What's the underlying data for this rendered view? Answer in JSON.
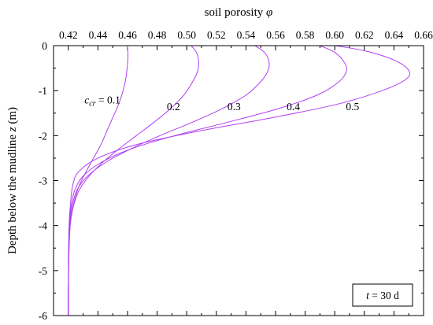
{
  "chart_data": {
    "type": "line",
    "xlabel": "soil porosity",
    "xlabel_symbol": "φ",
    "ylabel": "Depth below the mudline",
    "ylabel_symbol": "z",
    "ylabel_unit": "(m)",
    "xlim": [
      0.41,
      0.66
    ],
    "ylim": [
      -6,
      0
    ],
    "x_axis_position": "top",
    "x_ticks": [
      0.42,
      0.44,
      0.46,
      0.48,
      0.5,
      0.52,
      0.54,
      0.56,
      0.58,
      0.6,
      0.62,
      0.64,
      0.66
    ],
    "x_tick_labels": [
      "0.42",
      "0.44",
      "0.46",
      "0.48",
      "0.50",
      "0.52",
      "0.54",
      "0.56",
      "0.58",
      "0.60",
      "0.62",
      "0.64",
      "0.66"
    ],
    "y_ticks": [
      0,
      -1,
      -2,
      -3,
      -4,
      -5,
      -6
    ],
    "y_tick_labels": [
      "0",
      "-1",
      "-2",
      "-3",
      "-4",
      "-5",
      "-6"
    ],
    "grid": false,
    "line_color": "#b040f0",
    "series_label_prefix": "c",
    "series_label_subscript": "cr",
    "series_label_equals": " = ",
    "series": [
      {
        "name": "0.1",
        "label": "0.1",
        "label_at": [
          0.443,
          -1.2
        ],
        "points": [
          [
            0.46,
            0
          ],
          [
            0.4603,
            -0.2
          ],
          [
            0.46,
            -0.4
          ],
          [
            0.459,
            -0.7
          ],
          [
            0.457,
            -1.0
          ],
          [
            0.454,
            -1.3
          ],
          [
            0.45,
            -1.6
          ],
          [
            0.446,
            -1.9
          ],
          [
            0.442,
            -2.2
          ],
          [
            0.437,
            -2.5
          ],
          [
            0.432,
            -2.8
          ],
          [
            0.4275,
            -3.1
          ],
          [
            0.4245,
            -3.4
          ],
          [
            0.4225,
            -3.7
          ],
          [
            0.4212,
            -4.0
          ],
          [
            0.4205,
            -4.5
          ],
          [
            0.4202,
            -5.0
          ],
          [
            0.42,
            -5.5
          ],
          [
            0.42,
            -6.0
          ]
        ]
      },
      {
        "name": "0.2",
        "label": "0.2",
        "label_at": [
          0.491,
          -1.35
        ],
        "points": [
          [
            0.503,
            0
          ],
          [
            0.5065,
            -0.15
          ],
          [
            0.508,
            -0.35
          ],
          [
            0.5075,
            -0.55
          ],
          [
            0.504,
            -0.8
          ],
          [
            0.498,
            -1.1
          ],
          [
            0.489,
            -1.4
          ],
          [
            0.478,
            -1.7
          ],
          [
            0.466,
            -2.0
          ],
          [
            0.454,
            -2.3
          ],
          [
            0.443,
            -2.6
          ],
          [
            0.434,
            -2.9
          ],
          [
            0.4275,
            -3.2
          ],
          [
            0.424,
            -3.5
          ],
          [
            0.422,
            -3.8
          ],
          [
            0.421,
            -4.1
          ],
          [
            0.4205,
            -4.5
          ],
          [
            0.4202,
            -5.0
          ],
          [
            0.42,
            -5.5
          ],
          [
            0.42,
            -6.0
          ]
        ]
      },
      {
        "name": "0.3",
        "label": "0.3",
        "label_at": [
          0.532,
          -1.35
        ],
        "points": [
          [
            0.546,
            0
          ],
          [
            0.5525,
            -0.15
          ],
          [
            0.5555,
            -0.35
          ],
          [
            0.555,
            -0.55
          ],
          [
            0.55,
            -0.8
          ],
          [
            0.54,
            -1.1
          ],
          [
            0.524,
            -1.4
          ],
          [
            0.504,
            -1.7
          ],
          [
            0.482,
            -2.0
          ],
          [
            0.462,
            -2.3
          ],
          [
            0.445,
            -2.6
          ],
          [
            0.433,
            -2.9
          ],
          [
            0.426,
            -3.2
          ],
          [
            0.423,
            -3.5
          ],
          [
            0.4215,
            -3.8
          ],
          [
            0.4208,
            -4.1
          ],
          [
            0.4203,
            -4.5
          ],
          [
            0.4201,
            -5.0
          ],
          [
            0.42,
            -5.5
          ],
          [
            0.42,
            -6.0
          ]
        ]
      },
      {
        "name": "0.4",
        "label": "0.4",
        "label_at": [
          0.572,
          -1.35
        ],
        "points": [
          [
            0.59,
            0
          ],
          [
            0.6,
            -0.15
          ],
          [
            0.606,
            -0.35
          ],
          [
            0.608,
            -0.55
          ],
          [
            0.603,
            -0.8
          ],
          [
            0.588,
            -1.1
          ],
          [
            0.562,
            -1.4
          ],
          [
            0.528,
            -1.7
          ],
          [
            0.492,
            -2.0
          ],
          [
            0.462,
            -2.3
          ],
          [
            0.442,
            -2.6
          ],
          [
            0.43,
            -2.9
          ],
          [
            0.4245,
            -3.2
          ],
          [
            0.4222,
            -3.5
          ],
          [
            0.4212,
            -3.8
          ],
          [
            0.4206,
            -4.1
          ],
          [
            0.4203,
            -4.5
          ],
          [
            0.4201,
            -5.0
          ],
          [
            0.42,
            -5.5
          ],
          [
            0.42,
            -6.0
          ]
        ]
      },
      {
        "name": "0.5",
        "label": "0.5",
        "label_at": [
          0.612,
          -1.35
        ],
        "points": [
          [
            0.6,
            0
          ],
          [
            0.621,
            -0.12
          ],
          [
            0.64,
            -0.32
          ],
          [
            0.65,
            -0.55
          ],
          [
            0.648,
            -0.75
          ],
          [
            0.632,
            -1.0
          ],
          [
            0.602,
            -1.3
          ],
          [
            0.558,
            -1.6
          ],
          [
            0.508,
            -1.9
          ],
          [
            0.466,
            -2.2
          ],
          [
            0.44,
            -2.5
          ],
          [
            0.427,
            -2.8
          ],
          [
            0.423,
            -3.1
          ],
          [
            0.4215,
            -3.5
          ],
          [
            0.4208,
            -3.8
          ],
          [
            0.4204,
            -4.1
          ],
          [
            0.4202,
            -4.5
          ],
          [
            0.4201,
            -5.0
          ],
          [
            0.42,
            -5.5
          ],
          [
            0.42,
            -6.0
          ]
        ]
      }
    ],
    "annotation": {
      "variable": "t",
      "text": " = 30 d",
      "placement": "bottom-right"
    }
  }
}
